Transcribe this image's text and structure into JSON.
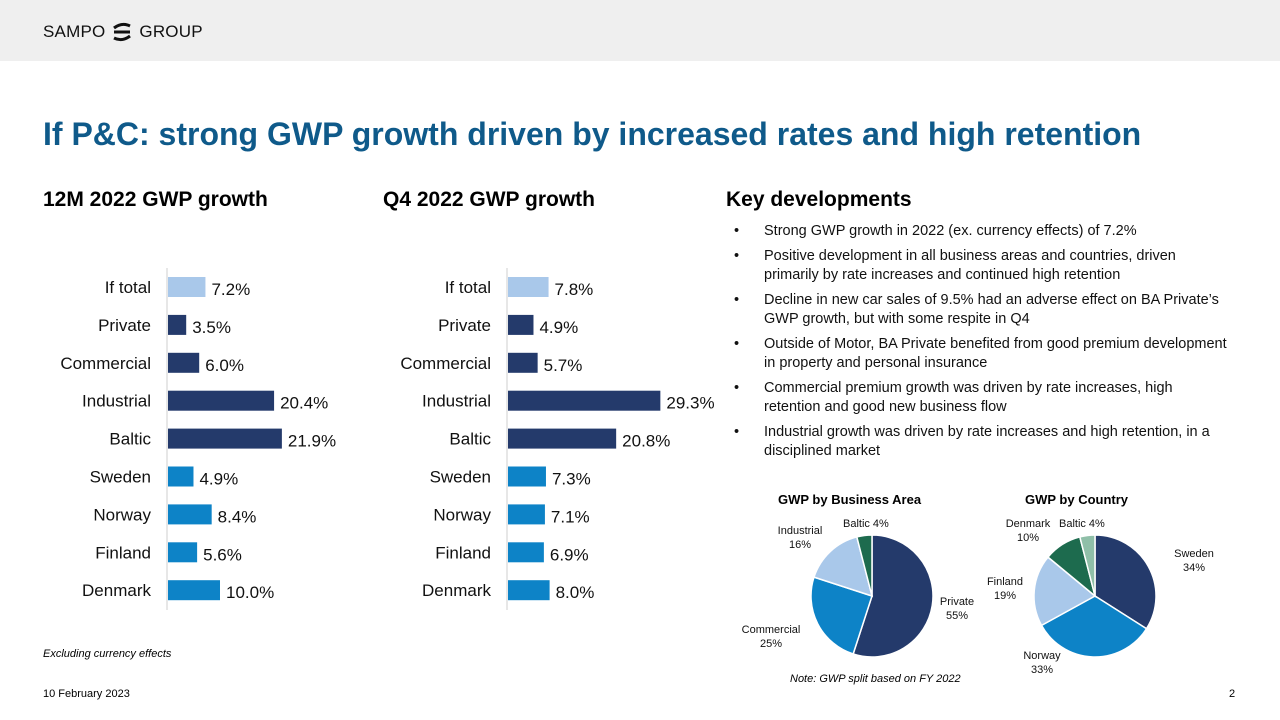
{
  "header": {
    "logo_left": "SAMPO",
    "logo_right": "GROUP"
  },
  "title": "If P&C: strong GWP growth driven by increased rates and high retention",
  "colors": {
    "light": "#a9c8ea",
    "dark": "#243a6b",
    "mid": "#0d83c7",
    "title": "#0f5a8a",
    "green": "#1d6b4e",
    "palegreen": "#8fbfa8"
  },
  "chart_data": [
    {
      "type": "bar",
      "title": "12M 2022 GWP growth",
      "categories": [
        "If total",
        "Private",
        "Commercial",
        "Industrial",
        "Baltic",
        "Sweden",
        "Norway",
        "Finland",
        "Denmark"
      ],
      "values": [
        7.2,
        3.5,
        6.0,
        20.4,
        21.9,
        4.9,
        8.4,
        5.6,
        10.0
      ],
      "labels": [
        "7.2%",
        "3.5%",
        "6.0%",
        "20.4%",
        "21.9%",
        "4.9%",
        "8.4%",
        "5.6%",
        "10.0%"
      ],
      "colors": [
        "#a9c8ea",
        "#243a6b",
        "#243a6b",
        "#243a6b",
        "#243a6b",
        "#0d83c7",
        "#0d83c7",
        "#0d83c7",
        "#0d83c7"
      ],
      "xlim": [
        0,
        30
      ]
    },
    {
      "type": "bar",
      "title": "Q4 2022 GWP growth",
      "categories": [
        "If total",
        "Private",
        "Commercial",
        "Industrial",
        "Baltic",
        "Sweden",
        "Norway",
        "Finland",
        "Denmark"
      ],
      "values": [
        7.8,
        4.9,
        5.7,
        29.3,
        20.8,
        7.3,
        7.1,
        6.9,
        8.0
      ],
      "labels": [
        "7.8%",
        "4.9%",
        "5.7%",
        "29.3%",
        "20.8%",
        "7.3%",
        "7.1%",
        "6.9%",
        "8.0%"
      ],
      "colors": [
        "#a9c8ea",
        "#243a6b",
        "#243a6b",
        "#243a6b",
        "#243a6b",
        "#0d83c7",
        "#0d83c7",
        "#0d83c7",
        "#0d83c7"
      ],
      "xlim": [
        0,
        30
      ]
    },
    {
      "type": "pie",
      "title": "GWP by Business Area",
      "slices": [
        {
          "name": "Private",
          "value": 55,
          "label": "55%",
          "color": "#243a6b"
        },
        {
          "name": "Commercial",
          "value": 25,
          "label": "25%",
          "color": "#0d83c7"
        },
        {
          "name": "Industrial",
          "value": 16,
          "label": "16%",
          "color": "#a9c8ea"
        },
        {
          "name": "Baltic",
          "value": 4,
          "label": "4%",
          "color": "#1d6b4e"
        }
      ]
    },
    {
      "type": "pie",
      "title": "GWP by Country",
      "slices": [
        {
          "name": "Sweden",
          "value": 34,
          "label": "34%",
          "color": "#243a6b"
        },
        {
          "name": "Norway",
          "value": 33,
          "label": "33%",
          "color": "#0d83c7"
        },
        {
          "name": "Finland",
          "value": 19,
          "label": "19%",
          "color": "#a9c8ea"
        },
        {
          "name": "Denmark",
          "value": 10,
          "label": "10%",
          "color": "#1d6b4e"
        },
        {
          "name": "Baltic",
          "value": 4,
          "label": "4%",
          "color": "#8fbfa8"
        }
      ]
    }
  ],
  "key_developments": {
    "heading": "Key developments",
    "bullets": [
      "Strong GWP growth in 2022 (ex. currency effects) of 7.2%",
      "Positive development in all business areas and countries, driven primarily by rate increases and continued high retention",
      "Decline in new car sales of 9.5% had an adverse effect on BA Private’s GWP growth, but with some respite in Q4",
      "Outside of Motor, BA Private benefited from good premium development in property and personal insurance",
      "Commercial premium growth was driven by rate increases, high retention and good new business flow",
      "Industrial growth was driven by rate increases and high retention, in a disciplined market"
    ]
  },
  "notes": {
    "currency": "Excluding currency effects",
    "split": "Note: GWP split based on FY 2022"
  },
  "footer": {
    "date": "10 February 2023",
    "page": "2"
  }
}
